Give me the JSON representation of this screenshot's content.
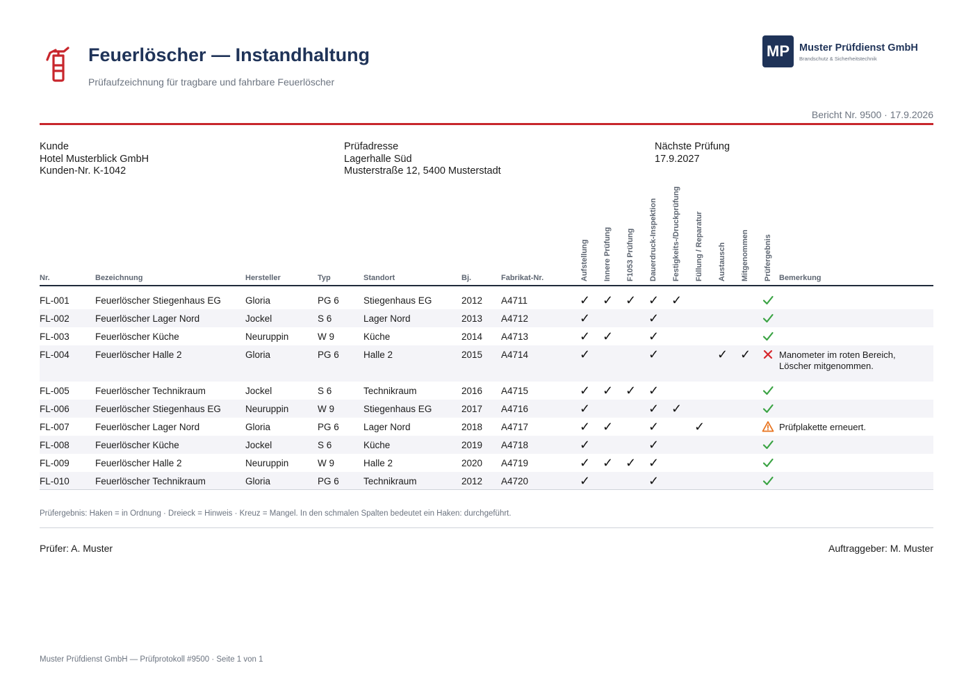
{
  "header": {
    "title": "Feuerlöscher — Instandhaltung",
    "subtitle": "Prüfaufzeichnung für tragbare und fahrbare Feuerlöscher",
    "icon": "fire-extinguisher-icon",
    "logo_initials": "MP",
    "company_name": "Muster Prüfdienst GmbH",
    "company_tagline": "Brandschutz & Sicherheitstechnik",
    "report_line": "Bericht Nr. 9500 · 17.9.2026"
  },
  "info": {
    "client": {
      "label": "Kunde",
      "name": "Hotel Musterblick GmbH",
      "number": "Kunden-Nr. K-1042"
    },
    "address": {
      "label": "Prüfadresse",
      "line1": "Lagerhalle Süd",
      "line2": "Musterstraße 12, 5400 Musterstadt"
    },
    "next": {
      "label": "Nächste Prüfung",
      "date": "17.9.2027"
    }
  },
  "columns": {
    "nr": "Nr.",
    "name": "Bezeichnung",
    "maker": "Hersteller",
    "type": "Typ",
    "location": "Standort",
    "year": "Bj.",
    "serial": "Fabrikat-Nr.",
    "checks": [
      "Aufstellung",
      "Innere Prüfung",
      "F1053 Prüfung",
      "Dauerdruck-Inspektion",
      "Festigkeits-/Druckprüfung",
      "Füllung / Reparatur",
      "Austausch",
      "Mitgenommen"
    ],
    "result": "Prüfergebnis",
    "remark": "Bemerkung"
  },
  "rows": [
    {
      "nr": "FL-001",
      "name": "Feuerlöscher Stiegenhaus EG",
      "maker": "Gloria",
      "type": "PG 6",
      "location": "Stiegenhaus EG",
      "year": "2012",
      "serial": "A4711",
      "checks": [
        1,
        1,
        1,
        1,
        1,
        0,
        0,
        0
      ],
      "result": "ok",
      "remark": ""
    },
    {
      "nr": "FL-002",
      "name": "Feuerlöscher Lager Nord",
      "maker": "Jockel",
      "type": "S 6",
      "location": "Lager Nord",
      "year": "2013",
      "serial": "A4712",
      "checks": [
        1,
        0,
        0,
        1,
        0,
        0,
        0,
        0
      ],
      "result": "ok",
      "remark": ""
    },
    {
      "nr": "FL-003",
      "name": "Feuerlöscher Küche",
      "maker": "Neuruppin",
      "type": "W 9",
      "location": "Küche",
      "year": "2014",
      "serial": "A4713",
      "checks": [
        1,
        1,
        0,
        1,
        0,
        0,
        0,
        0
      ],
      "result": "ok",
      "remark": ""
    },
    {
      "nr": "FL-004",
      "name": "Feuerlöscher Halle 2",
      "maker": "Gloria",
      "type": "PG 6",
      "location": "Halle 2",
      "year": "2015",
      "serial": "A4714",
      "checks": [
        1,
        0,
        0,
        1,
        0,
        0,
        1,
        1
      ],
      "result": "defect",
      "remark": "Manometer im roten Bereich,",
      "remark2": "Löscher mitgenommen."
    },
    {
      "nr": "FL-005",
      "name": "Feuerlöscher Technikraum",
      "maker": "Jockel",
      "type": "S 6",
      "location": "Technikraum",
      "year": "2016",
      "serial": "A4715",
      "checks": [
        1,
        1,
        1,
        1,
        0,
        0,
        0,
        0
      ],
      "result": "ok",
      "remark": ""
    },
    {
      "nr": "FL-006",
      "name": "Feuerlöscher Stiegenhaus EG",
      "maker": "Neuruppin",
      "type": "W 9",
      "location": "Stiegenhaus EG",
      "year": "2017",
      "serial": "A4716",
      "checks": [
        1,
        0,
        0,
        1,
        1,
        0,
        0,
        0
      ],
      "result": "ok",
      "remark": ""
    },
    {
      "nr": "FL-007",
      "name": "Feuerlöscher Lager Nord",
      "maker": "Gloria",
      "type": "PG 6",
      "location": "Lager Nord",
      "year": "2018",
      "serial": "A4717",
      "checks": [
        1,
        1,
        0,
        1,
        0,
        1,
        0,
        0
      ],
      "result": "warning",
      "remark": "Prüfplakette erneuert."
    },
    {
      "nr": "FL-008",
      "name": "Feuerlöscher Küche",
      "maker": "Jockel",
      "type": "S 6",
      "location": "Küche",
      "year": "2019",
      "serial": "A4718",
      "checks": [
        1,
        0,
        0,
        1,
        0,
        0,
        0,
        0
      ],
      "result": "ok",
      "remark": ""
    },
    {
      "nr": "FL-009",
      "name": "Feuerlöscher Halle 2",
      "maker": "Neuruppin",
      "type": "W 9",
      "location": "Halle 2",
      "year": "2020",
      "serial": "A4719",
      "checks": [
        1,
        1,
        1,
        1,
        0,
        0,
        0,
        0
      ],
      "result": "ok",
      "remark": ""
    },
    {
      "nr": "FL-010",
      "name": "Feuerlöscher Technikraum",
      "maker": "Gloria",
      "type": "PG 6",
      "location": "Technikraum",
      "year": "2012",
      "serial": "A4720",
      "checks": [
        1,
        0,
        0,
        1,
        0,
        0,
        0,
        0
      ],
      "result": "ok",
      "remark": ""
    }
  ],
  "legend": "Prüfergebnis: Haken = in Ordnung · Dreieck = Hinweis · Kreuz = Mangel. In den schmalen Spalten bedeutet ein Haken: durchgeführt.",
  "signatures": {
    "inspector": "Prüfer: A. Muster",
    "client": "Auftraggeber: M. Muster"
  },
  "footer": "Muster Prüfdienst GmbH — Prüfprotokoll #9500 · Seite 1 von 1",
  "colors": {
    "brand": "#1f3358",
    "accent_red": "#c8262c",
    "ok_green": "#3aa343",
    "warning_orange": "#e8731e",
    "defect_red": "#d6262c"
  }
}
